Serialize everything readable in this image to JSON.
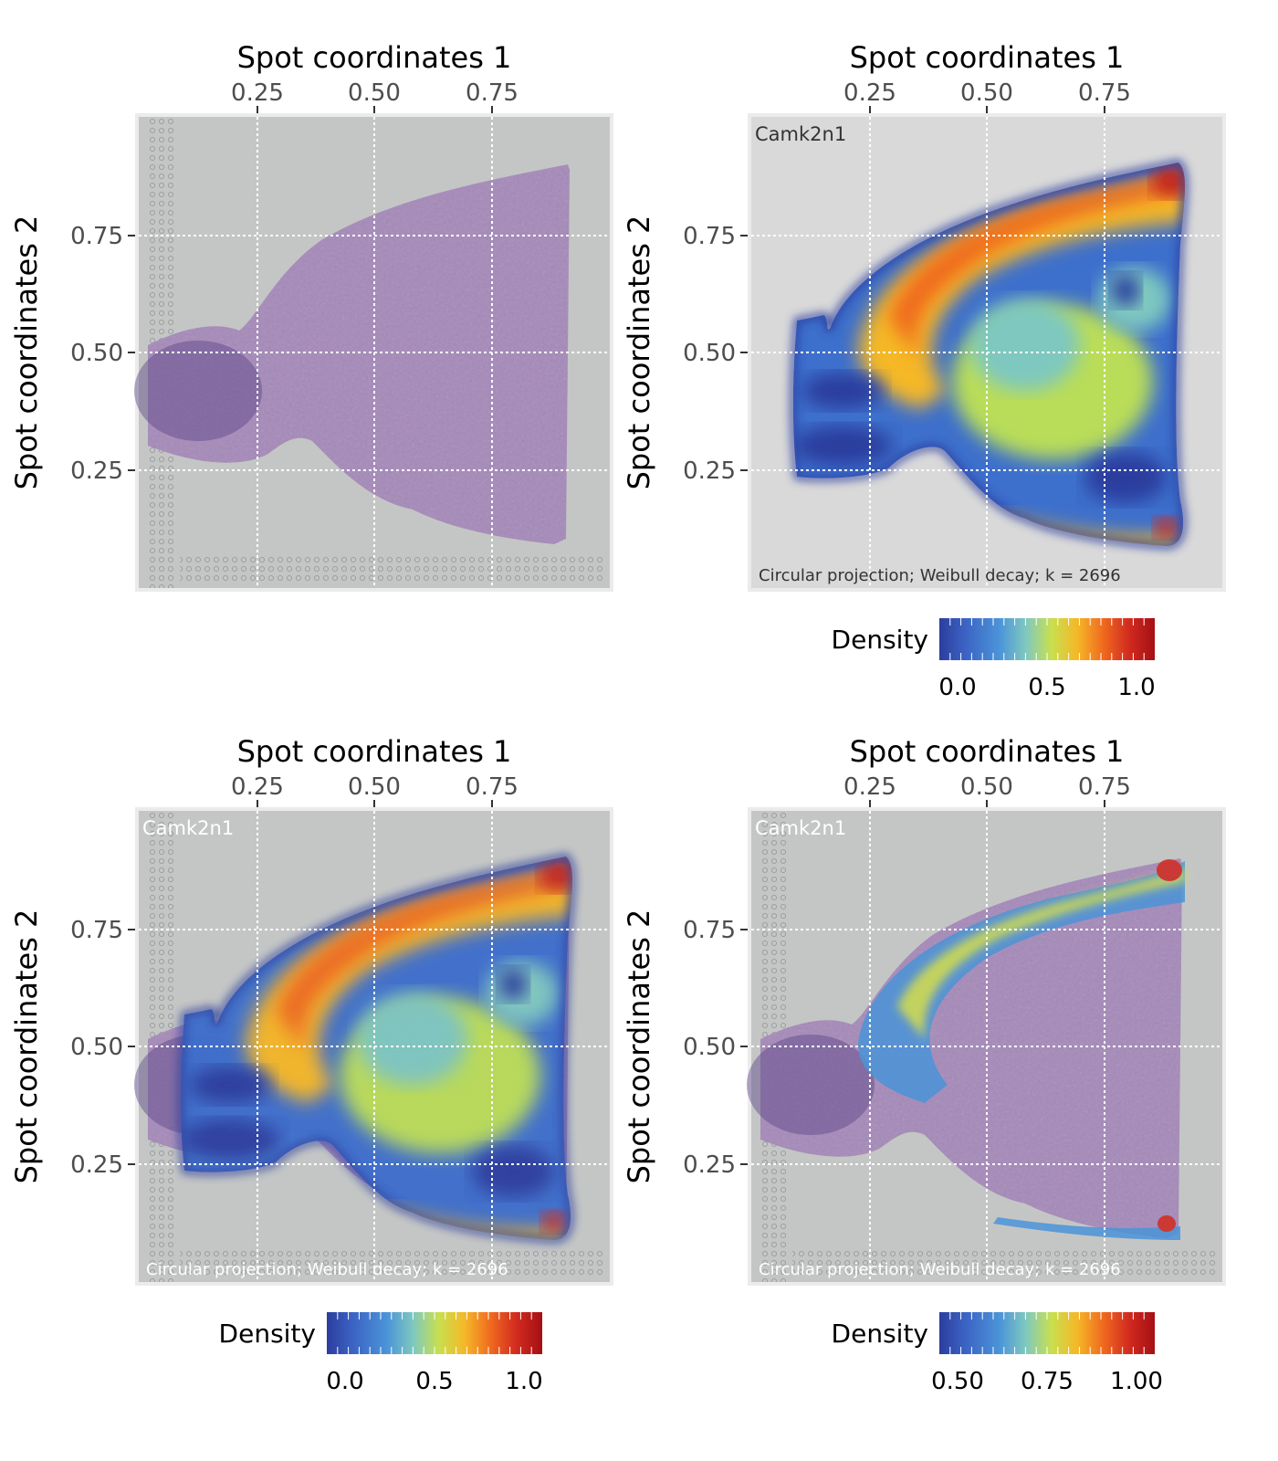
{
  "chart_data": [
    {
      "type": "heatmap",
      "panel": "top-left",
      "xlabel": "Spot coordinates 1",
      "ylabel": "Spot coordinates 2",
      "x_ticks": [
        "0.25",
        "0.50",
        "0.75"
      ],
      "y_ticks": [
        "0.75",
        "0.50",
        "0.25"
      ],
      "x_axis_position": "top",
      "grid": true,
      "background": "histology",
      "density_overlay": false
    },
    {
      "type": "heatmap",
      "panel": "top-right",
      "xlabel": "Spot coordinates 1",
      "ylabel": "Spot coordinates 2",
      "x_ticks": [
        "0.25",
        "0.50",
        "0.75"
      ],
      "y_ticks": [
        "0.75",
        "0.50",
        "0.25"
      ],
      "x_axis_position": "top",
      "grid": true,
      "background": "plain",
      "density_overlay": true,
      "gene": "Camk2n1",
      "caption": "Circular projection; Weibull decay; k = 2696",
      "legend": {
        "title": "Density",
        "ticks": [
          "0.0",
          "0.5",
          "1.0"
        ],
        "placement": "bottom",
        "range": [
          0,
          1
        ]
      }
    },
    {
      "type": "heatmap",
      "panel": "bottom-left",
      "xlabel": "Spot coordinates 1",
      "ylabel": "Spot coordinates 2",
      "x_ticks": [
        "0.25",
        "0.50",
        "0.75"
      ],
      "y_ticks": [
        "0.75",
        "0.50",
        "0.25"
      ],
      "x_axis_position": "top",
      "grid": true,
      "background": "histology",
      "density_overlay": true,
      "gene": "Camk2n1",
      "caption": "Circular projection; Weibull decay; k = 2696",
      "legend": {
        "title": "Density",
        "ticks": [
          "0.0",
          "0.5",
          "1.0"
        ],
        "placement": "bottom",
        "range": [
          0,
          1
        ]
      }
    },
    {
      "type": "heatmap",
      "panel": "bottom-right",
      "xlabel": "Spot coordinates 1",
      "ylabel": "Spot coordinates 2",
      "x_ticks": [
        "0.25",
        "0.50",
        "0.75"
      ],
      "y_ticks": [
        "0.75",
        "0.50",
        "0.25"
      ],
      "x_axis_position": "top",
      "grid": true,
      "background": "histology",
      "density_overlay": true,
      "density_threshold": 0.5,
      "gene": "Camk2n1",
      "caption": "Circular projection; Weibull decay; k = 2696",
      "legend": {
        "title": "Density",
        "ticks": [
          "0.50",
          "0.75",
          "1.00"
        ],
        "placement": "bottom",
        "range": [
          0.5,
          1
        ]
      }
    }
  ],
  "palette": {
    "colorbar": [
      "#2c3e9e",
      "#3b63c4",
      "#4b94d8",
      "#7ec8c0",
      "#c8df4f",
      "#f5b828",
      "#f06a1f",
      "#d22b1f",
      "#a50f15"
    ],
    "histology_bg": "#c4c6c5",
    "tissue": "#a589b9",
    "plain_bg": "#d9d9d9",
    "panel_border": "#ebebeb"
  }
}
